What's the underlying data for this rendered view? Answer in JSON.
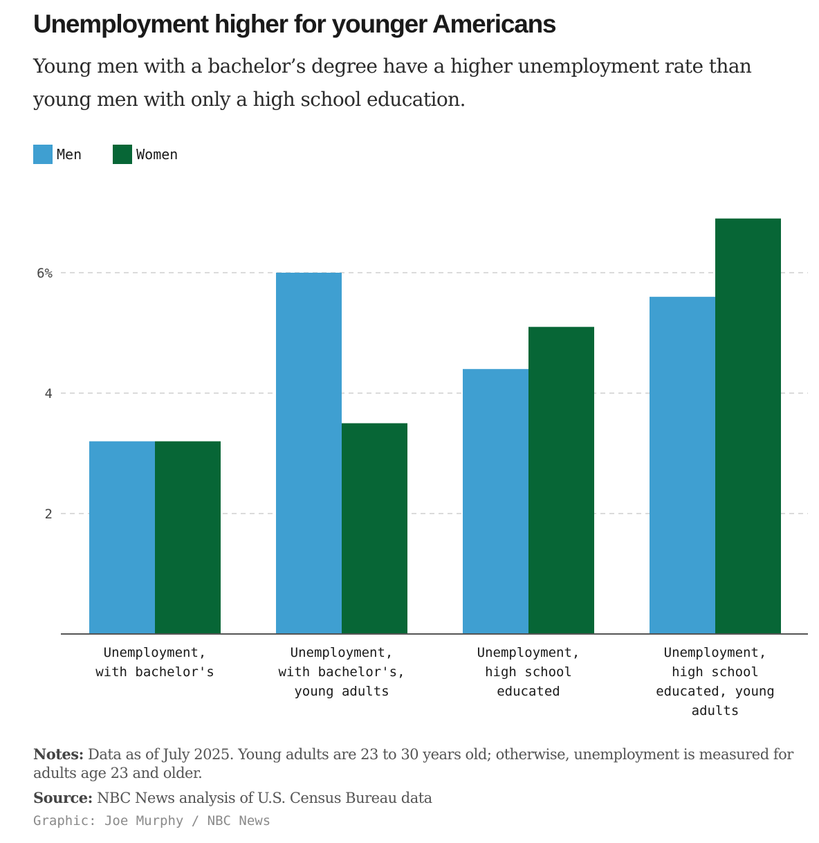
{
  "title": "Unemployment higher for younger Americans",
  "subtitle": "Young men with a bachelor’s degree have a higher unemployment rate than young men with only a high school education.",
  "legend": [
    {
      "label": "Men",
      "color": "#3f9fd1"
    },
    {
      "label": "Women",
      "color": "#076636"
    }
  ],
  "chart_data": {
    "type": "bar",
    "categories": [
      [
        "Unemployment,",
        "with bachelor's"
      ],
      [
        "Unemployment,",
        "with bachelor's,",
        "young adults"
      ],
      [
        "Unemployment,",
        "high school",
        "educated"
      ],
      [
        "Unemployment,",
        "high school",
        "educated, young",
        "adults"
      ]
    ],
    "series": [
      {
        "name": "Men",
        "color": "#3f9fd1",
        "values": [
          3.2,
          6.0,
          4.4,
          5.6
        ]
      },
      {
        "name": "Women",
        "color": "#076636",
        "values": [
          3.2,
          3.5,
          5.1,
          6.9
        ]
      }
    ],
    "yticks": [
      {
        "value": 2,
        "label": "2"
      },
      {
        "value": 4,
        "label": "4"
      },
      {
        "value": 6,
        "label": "6%"
      }
    ],
    "ylim": [
      0,
      7
    ],
    "grid": true,
    "legend_position": "top-left",
    "xlabel": "",
    "ylabel": ""
  },
  "notes": {
    "notes_label": "Notes:",
    "notes_text": " Data as of July 2025. Young adults are 23 to 30 years old; otherwise, unemployment is measured for adults age 23 and older.",
    "source_label": "Source:",
    "source_text": " NBC News analysis of U.S. Census Bureau data",
    "credit": "Graphic: Joe Murphy / NBC News"
  }
}
